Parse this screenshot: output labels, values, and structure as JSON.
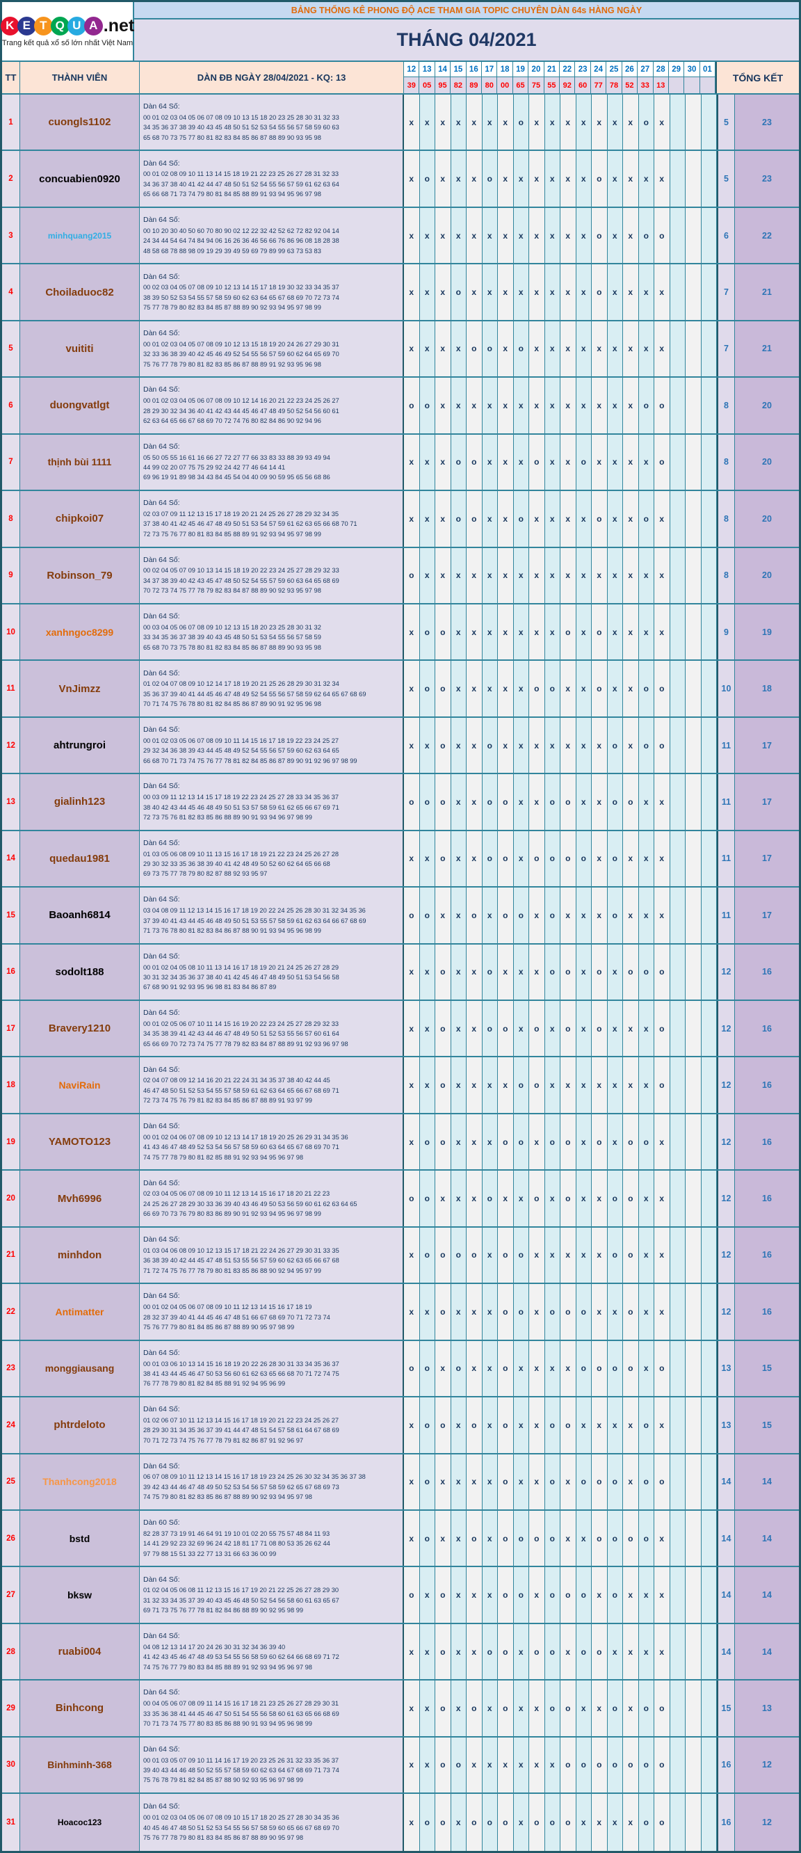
{
  "logo": {
    "letters": [
      {
        "ch": "K",
        "bg": "#E8112D"
      },
      {
        "ch": "E",
        "bg": "#2B3990"
      },
      {
        "ch": "T",
        "bg": "#F7941D"
      },
      {
        "ch": "Q",
        "bg": "#00A651"
      },
      {
        "ch": "U",
        "bg": "#27AAE1"
      },
      {
        "ch": "A",
        "bg": "#92278F"
      }
    ],
    "suffix": ".net",
    "tagline": "Trang kết quả xổ số lớn nhất Việt Nam"
  },
  "header": {
    "title": "BẢNG THỐNG KÊ PHONG ĐỘ ACE THAM GIA TOPIC CHUYÊN DÀN 64s HÀNG NGÀY",
    "month": "THÁNG 04/2021"
  },
  "columns": {
    "tt": "TT",
    "member": "THÀNH VIÊN",
    "dan": "DÀN ĐB NGÀY 28/04/2021 - KQ: 13",
    "tongket": "TỔNG KẾT"
  },
  "dates": [
    "12",
    "13",
    "14",
    "15",
    "16",
    "17",
    "18",
    "19",
    "20",
    "21",
    "22",
    "23",
    "24",
    "25",
    "26",
    "27",
    "28",
    "29",
    "30",
    "01"
  ],
  "results": [
    "39",
    "05",
    "95",
    "82",
    "89",
    "80",
    "00",
    "65",
    "75",
    "55",
    "92",
    "60",
    "77",
    "78",
    "52",
    "33",
    "13",
    "",
    "",
    ""
  ],
  "colors": {
    "border_teal": "#31859C",
    "border_dark": "#215968",
    "title_text": "#E26B0A",
    "month_text": "#1F3864",
    "date_text": "#0070C0",
    "result_text": "#FF0000",
    "mark_text": "#17365D",
    "total_text": "#2E75B6",
    "name_default": "#843C0C"
  },
  "rows": [
    {
      "tt": "1",
      "name": "cuongls1102",
      "color": "#843C0C",
      "size": 15,
      "label": "Dàn 64 Số:",
      "lines": [
        "00 01 02 03 04 05 06 07 08 09 10 13 15 18 20 23 25 28 30 31 32 33",
        "34 35 36 37 38 39 40 43 45 48 50 51 52 53 54 55 56 57 58 59 60 63",
        "65 68 70 73 75 77 80 81 82 83 84 85 86 87 88 89 90 93 95 98"
      ],
      "marks": "xxxxxxxoxxxxxxxox",
      "t1": "5",
      "t2": "23"
    },
    {
      "tt": "2",
      "name": "concuabien0920",
      "color": "#000000",
      "size": 15,
      "label": "Dàn 64 Số:",
      "lines": [
        "00 01 02 08 09 10 11 13 14 15 18 19 21 22 23 25 26 27 28 31 32 33",
        "34 36 37 38 40 41 42 44 47 48 50 51 52 54 55 56 57 59 61 62 63 64",
        "65 66 68 71 73 74 79 80 81 84 85 88 89 91 93 94 95 96 97 98"
      ],
      "marks": "xoxxxoxxxxxxoxxxx",
      "t1": "5",
      "t2": "23"
    },
    {
      "tt": "3",
      "name": "minhquang2015",
      "color": "#31AEE4",
      "size": 12,
      "label": "Dàn 64 Số:",
      "lines": [
        "00 10 20 30 40 50 60 70 80 90 02 12 22 32 42 52 62 72 82 92 04 14",
        "24 34 44 54 64 74 84 94 06 16 26 36 46 56 66 76 86 96 08 18 28 38",
        "48 58 68 78 88 98 09 19 29 39 49 59 69 79 89 99 63 73 53 83"
      ],
      "marks": "xxxxxxxxxxxxoxxoo",
      "t1": "6",
      "t2": "22"
    },
    {
      "tt": "4",
      "name": "Choiladuoc82",
      "color": "#843C0C",
      "size": 15,
      "label": "Dàn 64 Số:",
      "lines": [
        "00 02 03 04 05 07 08 09 10 12 13 14 15 17 18 19 30 32 33 34 35 37",
        "38 39 50 52 53 54 55 57 58 59 60 62 63 64 65 67 68 69 70 72 73 74",
        "75 77 78 79 80 82 83 84 85 87 88 89 90 92 93 94 95 97 98 99"
      ],
      "marks": "xxxoxxxxxxxxoxxxx",
      "t1": "7",
      "t2": "21"
    },
    {
      "tt": "5",
      "name": "vuititi",
      "color": "#843C0C",
      "size": 15,
      "label": "Dàn 64 Số:",
      "lines": [
        "00 01 02 03 04 05 07 08 09 10 12 13 15 18 19 20 24 26 27 29 30 31",
        "32 33 36 38 39 40 42 45 46 49 52 54 55 56 57 59 60 62 64 65 69 70",
        "75 76 77 78 79 80 81 82 83 85 86 87 88 89 91 92 93 95 96 98"
      ],
      "marks": "xxxxooxoxxxxxxxxx",
      "t1": "7",
      "t2": "21"
    },
    {
      "tt": "6",
      "name": "duongvatlgt",
      "color": "#843C0C",
      "size": 15,
      "label": "Dàn 64 Số:",
      "lines": [
        "00 01 02 03 04 05 06 07 08 09 10 12 14 16 20 21 22 23 24 25 26 27",
        "28 29 30 32 34 36 40 41 42 43 44 45 46 47 48 49 50 52 54 56 60 61",
        "62 63 64 65 66 67 68 69 70 72 74 76 80 82 84 86 90 92 94 96"
      ],
      "marks": "ooxxxxxxxxxxxxxoo",
      "t1": "8",
      "t2": "20"
    },
    {
      "tt": "7",
      "name": "thịnh bùi 1111",
      "color": "#843C0C",
      "size": 14,
      "label": "Dàn 64 Số:",
      "lines": [
        "05 50 05 55 16 61 16 66 27 72 27 77 66 33 83 33 88 39 93 49 94",
        "44 99 02 20 07 75 75 29 92 24 42 77 46 64 14 41",
        "69 96 19 91 89 98 34 43 84 45 54 04 40 09 90 59 95 65 56 68 86"
      ],
      "marks": "xxxooxxxoxxoxxxxo",
      "t1": "8",
      "t2": "20"
    },
    {
      "tt": "8",
      "name": "chipkoi07",
      "color": "#843C0C",
      "size": 15,
      "label": "Dàn 64 Số:",
      "lines": [
        "02 03 07 09 11 12 13 15 17 18 19 20 21 24 25 26 27 28 29 32 34 35",
        "37 38 40 41 42 45 46 47 48 49 50 51 53 54 57 59 61 62 63 65 66 68 70 71",
        "72 73 75 76 77 80 81 83 84 85 88 89 91 92 93 94 95 97 98 99"
      ],
      "marks": "xxxooxxoxxxxoxxox",
      "t1": "8",
      "t2": "20"
    },
    {
      "tt": "9",
      "name": "Robinson_79",
      "color": "#843C0C",
      "size": 15,
      "label": "Dàn 64 Số:",
      "lines": [
        "00 02 04 05 07 09 10 13 14 15 18 19 20 22 23 24 25 27 28 29 32 33",
        "34 37 38 39 40 42 43 45 47 48 50 52 54 55 57 59 60 63 64 65 68 69",
        "70 72 73 74 75 77 78 79 82 83 84 87 88 89 90 92 93 95 97 98"
      ],
      "marks": "oxxxxxxxxxxxxxxxx",
      "t1": "8",
      "t2": "20"
    },
    {
      "tt": "10",
      "name": "xanhngoc8299",
      "color": "#E36C0A",
      "size": 14,
      "label": "Dàn 64 Số:",
      "lines": [
        "00 03 04 05 06 07 08 09 10 12 13 15 18 20 23 25 28 30 31 32",
        "33 34 35 36 37 38 39 40 43 45 48 50 51 53 54 55 56 57 58 59",
        "65 68 70 73 75 78 80 81 82 83 84 85 86 87 88 89 90 93 95 98"
      ],
      "marks": "xooxxxxxxxoxoxxxx",
      "t1": "9",
      "t2": "19"
    },
    {
      "tt": "11",
      "name": "VnJimzz",
      "color": "#843C0C",
      "size": 15,
      "label": "Dàn 64 Số:",
      "lines": [
        "01 02 04 07 08 09 10 12 14 17 18 19 20 21 25 26 28 29 30 31 32 34",
        "35 36 37 39 40 41 44 45 46 47 48 49 52 54 55 56 57 58 59 62 64 65 67 68 69",
        "70 71 74 75 76 78 80 81 82 84 85 86 87 89 90 91 92 95 96 98"
      ],
      "marks": "xooxxxxxooxxoxxoo",
      "t1": "10",
      "t2": "18"
    },
    {
      "tt": "12",
      "name": "ahtrungroi",
      "color": "#000000",
      "size": 15,
      "label": "Dàn 64 Số:",
      "lines": [
        "00 01 02 03 05 06 07 08 09 10 11 14 15 16 17 18 19 22 23 24 25 27",
        "29 32 34 36 38 39 43 44 45 48 49 52 54 55 56 57 59 60 62 63 64 65",
        "66 68 70 71 73 74 75 76 77 78 81 82 84 85 86 87 89 90 91 92 96 97 98 99"
      ],
      "marks": "xxoxxoxxxxxxxoxoo",
      "t1": "11",
      "t2": "17"
    },
    {
      "tt": "13",
      "name": "gialinh123",
      "color": "#843C0C",
      "size": 15,
      "label": "Dàn 64 Số:",
      "lines": [
        "00 03 09 11 12 13 14 15 17 18 19 22 23 24 25 27 28 33 34 35 36 37",
        "38 40 42 43 44 45 46 48 49 50 51 53 57 58 59 61 62 65 66 67 69 71",
        "72 73 75 76 81 82 83 85 86 88 89 90 91 93 94 96 97 98 99"
      ],
      "marks": "oooxxooxxooxxooxx",
      "t1": "11",
      "t2": "17"
    },
    {
      "tt": "14",
      "name": "quedau1981",
      "color": "#843C0C",
      "size": 15,
      "label": "Dàn 64 Số:",
      "lines": [
        "01 03 05 06 08 09 10 11 13 15 16 17 18 19 21 22 23 24 25 26 27 28",
        "29 30 32 33 35 36 38 39 40 41 42 48 49 50 52 60 62 64 65 66 68",
        "69 73 75 77 78 79 80 82 87 88 92 93 95 97"
      ],
      "marks": "xxoxxooxooooxoxxx",
      "t1": "11",
      "t2": "17"
    },
    {
      "tt": "15",
      "name": "Baoanh6814",
      "color": "#000000",
      "size": 15,
      "label": "Dàn 64 Số:",
      "lines": [
        "03 04 08 09 11 12 13 14 15 16 17 18 19 20 22 24 25 26 28 30 31 32 34 35 36",
        "37 39 40 41 43 44 45 46 48 49 50 51 53 55 57 58 59 61 62 63 64 66 67 68 69",
        "71 73 76 78 80 81 82 83 84 86 87 88 90 91 93 94 95 96 98 99"
      ],
      "marks": "ooxxoxooxoxxxoxxx",
      "t1": "11",
      "t2": "17"
    },
    {
      "tt": "16",
      "name": "sodolt188",
      "color": "#000000",
      "size": 15,
      "label": "Dàn 64 Số:",
      "lines": [
        "00 01 02 04 05 08 10 11 13 14 16 17 18 19 20 21 24 25 26 27 28 29",
        "30 31 32 34 35 36 37 38 40 41 42 45 46 47 48 49 50 51 53 54 56 58",
        "67 68 90 91 92 93 95 96 98 81 83 84 86 87 89"
      ],
      "marks": "xxoxxoxxxooxoxooo",
      "t1": "12",
      "t2": "16"
    },
    {
      "tt": "17",
      "name": "Bravery1210",
      "color": "#843C0C",
      "size": 15,
      "label": "Dàn 64 Số:",
      "lines": [
        "00 01 02 05 06 07 10 11 14 15 16 19 20 22 23 24 25 27 28 29 32 33",
        "34 35 38 39 41 42 43 44 46 47 48 49 50 51 52 53 55 56 57 60 61 64",
        "65 66 69 70 72 73 74 75 77 78 79 82 83 84 87 88 89 91 92 93 96 97 98"
      ],
      "marks": "xxoxxooxoxoxoxxxo",
      "t1": "12",
      "t2": "16"
    },
    {
      "tt": "18",
      "name": "NaviRain",
      "color": "#E36C0A",
      "size": 14,
      "label": "Dàn 64 Số:",
      "lines": [
        "02 04 07 08 09 12 14 16 20 21 22 24 31 34 35 37 38 40 42 44 45",
        "46 47 48 50 51 52 53 54 55 57 58 59 61 62 63 64 65 66 67 68 69 71",
        "72 73 74 75 76 79 81 82 83 84 85 86 87 88 89 91 93 97 99"
      ],
      "marks": "xxoxxxxooxxxxxxxo",
      "t1": "12",
      "t2": "16"
    },
    {
      "tt": "19",
      "name": "YAMOTO123",
      "color": "#843C0C",
      "size": 15,
      "label": "Dàn 64 Số:",
      "lines": [
        "00 01 02 04 06 07 08 09 10 12 13 14 17 18 19 20 25 26 29 31 34 35 36",
        "41 43 46 47 48 49 52 53 54 56 57 58 59 60 63 64 65 67 68 69 70 71",
        "74 75 77 78 79 80 81 82 85 88 91 92 93 94 95 96 97 98"
      ],
      "marks": "xooxxxooxooxoxoox",
      "t1": "12",
      "t2": "16"
    },
    {
      "tt": "20",
      "name": "Mvh6996",
      "color": "#843C0C",
      "size": 15,
      "label": "Dàn 64 Số:",
      "lines": [
        "02 03 04 05 06 07 08 09 10 11 12 13 14 15 16 17 18 20 21 22 23",
        "24 25 26 27 28 29 30 33 36 39 40 43 46 49 50 53 56 59 60 61 62 63 64 65",
        "66 69 70 73 76 79 80 83 86 89 90 91 92 93 94 95 96 97 98 99"
      ],
      "marks": "ooxxxoxxoxoxxooxx",
      "t1": "12",
      "t2": "16"
    },
    {
      "tt": "21",
      "name": "minhdon",
      "color": "#843C0C",
      "size": 15,
      "label": "Dàn 64 Số:",
      "lines": [
        "01 03 04 06 08 09 10 12 13 15 17 18 21 22 24 26 27 29 30 31 33 35",
        "36 38 39 40 42 44 45 47 48 51 53 55 56 57 59 60 62 63 65 66 67 68",
        "71 72 74 75 76 77 78 79 80 81 83 85 86 88 90 92 94 95 97 99"
      ],
      "marks": "xoooo­xooxxxxxooxx",
      "t1": "12",
      "t2": "16"
    },
    {
      "tt": "22",
      "name": "Antimatter",
      "color": "#E36C0A",
      "size": 14,
      "label": "Dàn 64 Số:",
      "lines": [
        "00 01 02 04 05 06 07 08 09 10 11 12 13 14 15 16 17 18 19",
        "28 32 37 39 40 41 44 45 46 47 48 51 66 67 68 69 70 71 72 73 74",
        "75 76 77 79 80 81 84 85 86 87 88 89 90 95 97 98 99"
      ],
      "marks": "xxoxxxooxoooxxoxx",
      "t1": "12",
      "t2": "16"
    },
    {
      "tt": "23",
      "name": "monggiausang",
      "color": "#843C0C",
      "size": 14,
      "label": "Dàn 64 Số:",
      "lines": [
        "00 01 03 06 10 13 14 15 16 18 19 20 22 26 28 30 31 33 34 35 36 37",
        "38 41 43 44 45 46 47 50 53 56 60 61 62 63 65 66 68 70 71 72 74 75",
        "76 77 78 79 80 81 82 84 85 88 91 92 94 95 96 99"
      ],
      "marks": "ooxoxxoxxxxooooxo",
      "t1": "13",
      "t2": "15"
    },
    {
      "tt": "24",
      "name": "phtrdeloto",
      "color": "#843C0C",
      "size": 15,
      "label": "Dàn 64 Số:",
      "lines": [
        "01 02 06 07 10 11 12 13 14 15 16 17 18 19 20 21 22 23 24 25 26 27",
        "28 29 30 31 34 35 36 37 39 41 44 47 48 51 54 57 58 61 64 67 68 69",
        "70 71 72 73 74 75 76 77 78 79 81 82 86 87 91 92 96 97"
      ],
      "marks": "xooxoxoxxooxxxxox",
      "t1": "13",
      "t2": "15"
    },
    {
      "tt": "25",
      "name": "Thanhcong2018",
      "color": "#F79646",
      "size": 14,
      "label": "Dàn 64 Số:",
      "lines": [
        "06 07 08 09 10 11 12 13 14 15 16 17 18 19 23 24 25 26 30 32 34 35 36 37 38",
        "39 42 43 44 46 47 48 49 50 52 53 54 56 57 58 59 62 65 67 68 69 73",
        "74 75 79 80 81 82 83 85 86 87 88 89 90 92 93 94 95 97 98"
      ],
      "marks": "xoxxxxoxxoxoooxoo",
      "t1": "14",
      "t2": "14"
    },
    {
      "tt": "26",
      "name": "bstd",
      "color": "#000000",
      "size": 14,
      "label": "Dàn 60 Số:",
      "lines": [
        "82 28 37 73 19 91 46 64 91 19 10 01 02 20 55 75 57 48 84 11 93",
        "14 41 29 92 23 32 69 96 24 42 18 81 17 71 08 80 53 35 26 62 44",
        "97 79 88 15 51 33 22 77 13 31 66 63 36 00 99"
      ],
      "marks": "xoxxoxooooxxoooox",
      "t1": "14",
      "t2": "14"
    },
    {
      "tt": "27",
      "name": "bksw",
      "color": "#000000",
      "size": 14,
      "label": "Dàn 64 Số:",
      "lines": [
        "01 02 04 05 06 08 11 12 13 15 16 17 19 20 21 22 25 26 27 28 29 30",
        "31 32 33 34 35 37 39 40 43 45 46 48 50 52 54 56 58 60 61 63 65 67",
        "69 71 73 75 76 77 78 81 82 84 86 88 89 90 92 95 98 99"
      ],
      "marks": "oxoxxxooxoooxoxxx",
      "t1": "14",
      "t2": "14"
    },
    {
      "tt": "28",
      "name": "ruabi004",
      "color": "#843C0C",
      "size": 15,
      "label": "Dàn 64 Số:",
      "lines": [
        "04 08 12 13 14 17 20 24 26 30 31 32 34 36 39 40",
        "41 42 43 45 46 47 48 49 53 54 55 56 58 59 60 62 64 66 68 69 71 72",
        "74 75 76 77 79 80 83 84 85 88 89 91 92 93 94 95 96 97 98"
      ],
      "marks": "xxoxxooxooxooxxxx",
      "t1": "14",
      "t2": "14"
    },
    {
      "tt": "29",
      "name": "Binhcong",
      "color": "#843C0C",
      "size": 15,
      "label": "Dàn 64 Số:",
      "lines": [
        "00 04 05 06 07 08 09 11 14 15 16 17 18 21 23 25 26 27 28 29 30 31",
        "33 35 36 38 41 44 45 46 47 50 51 54 55 56 58 60 61 63 65 66 68 69",
        "70 71 73 74 75 77 80 83 85 86 88 90 91 93 94 95 96 98 99"
      ],
      "marks": "xxoxoxoxxooxxoxoo",
      "t1": "15",
      "t2": "13"
    },
    {
      "tt": "30",
      "name": "Binhminh-368",
      "color": "#843C0C",
      "size": 14,
      "label": "Dàn 64 Số:",
      "lines": [
        "00 01 03 05 07 09 10 11 14 16 17 19 20 23 25 26 31 32 33 35 36 37",
        "39 40 43 44 46 48 50 52 55 57 58 59 60 62 63 64 67 68 69 71 73 74",
        "75 76 78 79 81 82 84 85 87 88 90 92 93 95 96 97 98 99"
      ],
      "marks": "xxooxxxxxxooooooo",
      "t1": "16",
      "t2": "12"
    },
    {
      "tt": "31",
      "name": "Hoacoc123",
      "color": "#000000",
      "size": 12,
      "label": "Dàn 64 Số:",
      "lines": [
        "00 01 02 03 04 05 06 07 08 09 10 15 17 18 20 25 27 28 30 34 35 36",
        "40 45 46 47 48 50 51 52 53 54 55 56 57 58 59 60 65 66 67 68 69 70",
        "75 76 77 78 79 80 81 83 84 85 86 87 88 89 90 95 97 98"
      ],
      "marks": "xooxoooxoooxxxxoo",
      "t1": "16",
      "t2": "12"
    }
  ]
}
